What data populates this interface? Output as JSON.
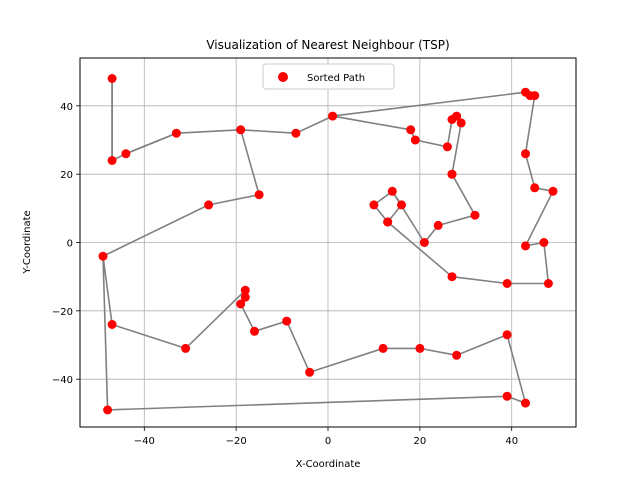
{
  "chart_data": {
    "type": "scatter",
    "title": "Visualization of Nearest Neighbour (TSP)",
    "xlabel": "X-Coordinate",
    "ylabel": "Y-Coordinate",
    "xlim": [
      -54,
      54
    ],
    "ylim": [
      -54,
      54
    ],
    "xticks": [
      -40,
      -20,
      0,
      20,
      40
    ],
    "yticks": [
      -40,
      -20,
      0,
      20,
      40
    ],
    "tick_labels_x": [
      "−40",
      "−20",
      "0",
      "20",
      "40"
    ],
    "tick_labels_y": [
      "−40",
      "−20",
      "0",
      "20",
      "40"
    ],
    "grid": true,
    "legend": {
      "position": "top-center",
      "entries": [
        "Sorted Path"
      ]
    },
    "colors": {
      "points": "#ff0000",
      "path": "#808080",
      "grid": "#b0b0b0",
      "axes": "#000000"
    },
    "series": [
      {
        "name": "Sorted Path",
        "points": [
          [
            -47,
            48
          ],
          [
            -47,
            24
          ],
          [
            -44,
            26
          ],
          [
            -33,
            32
          ],
          [
            -19,
            33
          ],
          [
            -7,
            32
          ],
          [
            1,
            37
          ],
          [
            18,
            33
          ],
          [
            19,
            30
          ],
          [
            26,
            28
          ],
          [
            27,
            36
          ],
          [
            28,
            37
          ],
          [
            29,
            35
          ],
          [
            27,
            20
          ],
          [
            27,
            20
          ],
          [
            32,
            8
          ],
          [
            24,
            5
          ],
          [
            21,
            0
          ],
          [
            14,
            15
          ],
          [
            10,
            11
          ],
          [
            13,
            6
          ],
          [
            16,
            11
          ],
          [
            43,
            26
          ],
          [
            45,
            16
          ],
          [
            49,
            15
          ],
          [
            43,
            -1
          ],
          [
            47,
            0
          ],
          [
            48,
            -12
          ],
          [
            39,
            -12
          ],
          [
            27,
            -10
          ],
          [
            13,
            6
          ],
          [
            -15,
            14
          ],
          [
            -26,
            11
          ],
          [
            -49,
            -4
          ],
          [
            -47,
            -24
          ],
          [
            -31,
            -31
          ],
          [
            -18,
            -14
          ],
          [
            -18,
            -16
          ],
          [
            -19,
            -18
          ],
          [
            -16,
            -26
          ],
          [
            -9,
            -23
          ],
          [
            -4,
            -38
          ],
          [
            12,
            -31
          ],
          [
            20,
            -31
          ],
          [
            28,
            -33
          ],
          [
            39,
            -27
          ],
          [
            43,
            -47
          ],
          [
            39,
            -45
          ],
          [
            -48,
            -49
          ],
          [
            43,
            44
          ],
          [
            44,
            43
          ],
          [
            45,
            43
          ]
        ],
        "path": [
          [
            -47,
            48
          ],
          [
            -47,
            24
          ],
          [
            -44,
            26
          ],
          [
            -33,
            32
          ],
          [
            -19,
            33
          ],
          [
            -15,
            14
          ],
          [
            -26,
            11
          ],
          [
            -49,
            -4
          ],
          [
            -47,
            -24
          ],
          [
            -31,
            -31
          ],
          [
            -18,
            -14
          ],
          [
            -18,
            -16
          ],
          [
            -19,
            -18
          ],
          [
            -16,
            -26
          ],
          [
            -9,
            -23
          ],
          [
            -4,
            -38
          ],
          [
            12,
            -31
          ],
          [
            20,
            -31
          ],
          [
            28,
            -33
          ],
          [
            39,
            -27
          ],
          [
            43,
            -47
          ],
          [
            39,
            -45
          ],
          [
            -48,
            -49
          ],
          [
            -49,
            -4
          ]
        ],
        "path2": [
          [
            -47,
            48
          ],
          [
            -47,
            24
          ]
        ],
        "path3": [
          [
            -19,
            33
          ],
          [
            -7,
            32
          ],
          [
            1,
            37
          ],
          [
            18,
            33
          ],
          [
            19,
            30
          ],
          [
            26,
            28
          ],
          [
            27,
            36
          ],
          [
            28,
            37
          ],
          [
            29,
            35
          ],
          [
            27,
            20
          ],
          [
            32,
            8
          ],
          [
            24,
            5
          ],
          [
            21,
            0
          ],
          [
            14,
            15
          ],
          [
            10,
            11
          ],
          [
            13,
            6
          ],
          [
            16,
            11
          ],
          [
            14,
            15
          ]
        ],
        "path4": [
          [
            1,
            37
          ],
          [
            43,
            44
          ],
          [
            44,
            43
          ],
          [
            45,
            43
          ],
          [
            43,
            26
          ],
          [
            45,
            16
          ],
          [
            49,
            15
          ],
          [
            43,
            -1
          ],
          [
            47,
            0
          ],
          [
            48,
            -12
          ],
          [
            39,
            -12
          ],
          [
            27,
            -10
          ],
          [
            13,
            6
          ]
        ],
        "path5": [
          [
            -33,
            32
          ],
          [
            -44,
            26
          ]
        ]
      }
    ]
  }
}
